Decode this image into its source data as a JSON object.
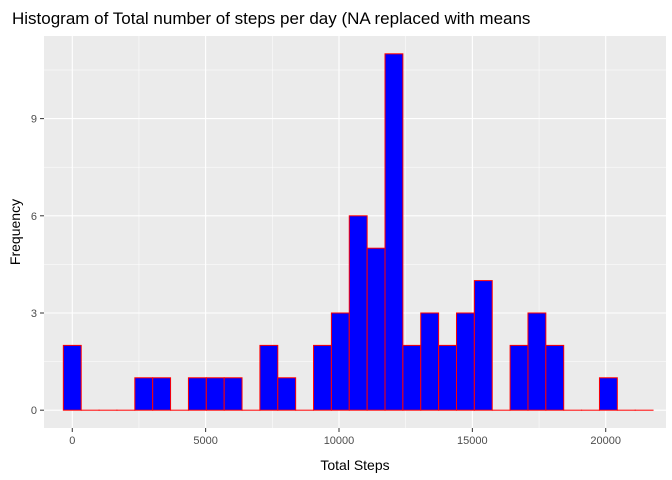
{
  "chart_data": {
    "type": "bar",
    "title": "Histogram of Total number of steps per day (NA replaced with means",
    "xlabel": "Total Steps",
    "ylabel": "Frequency",
    "xlim": [
      -1060,
      22260
    ],
    "ylim": [
      -0.55,
      11.55
    ],
    "x_ticks": [
      0,
      5000,
      10000,
      15000,
      20000
    ],
    "x_tick_labels": [
      "0",
      "5000",
      "10000",
      "15000",
      "20000"
    ],
    "y_ticks": [
      0,
      3,
      6,
      9
    ],
    "y_tick_labels": [
      "0",
      "3",
      "6",
      "9"
    ],
    "bin_width": 670,
    "bin_centers": [
      0,
      670,
      1340,
      2010,
      2680,
      3350,
      4020,
      4690,
      5360,
      6030,
      6700,
      7370,
      8040,
      8710,
      9380,
      10050,
      10720,
      11390,
      12060,
      12730,
      13400,
      14070,
      14740,
      15410,
      16080,
      16750,
      17420,
      18090,
      18760,
      19430,
      20100,
      20770,
      21440
    ],
    "values": [
      2,
      0,
      0,
      0,
      1,
      1,
      0,
      1,
      1,
      1,
      0,
      2,
      1,
      0,
      2,
      3,
      6,
      5,
      11,
      2,
      3,
      2,
      3,
      4,
      0,
      2,
      3,
      2,
      0,
      0,
      1,
      0,
      0
    ],
    "fill_color": "#0000FF",
    "outline_color": "#FF0000",
    "panel_background": "#EBEBEB",
    "grid": true,
    "legend": "none"
  }
}
